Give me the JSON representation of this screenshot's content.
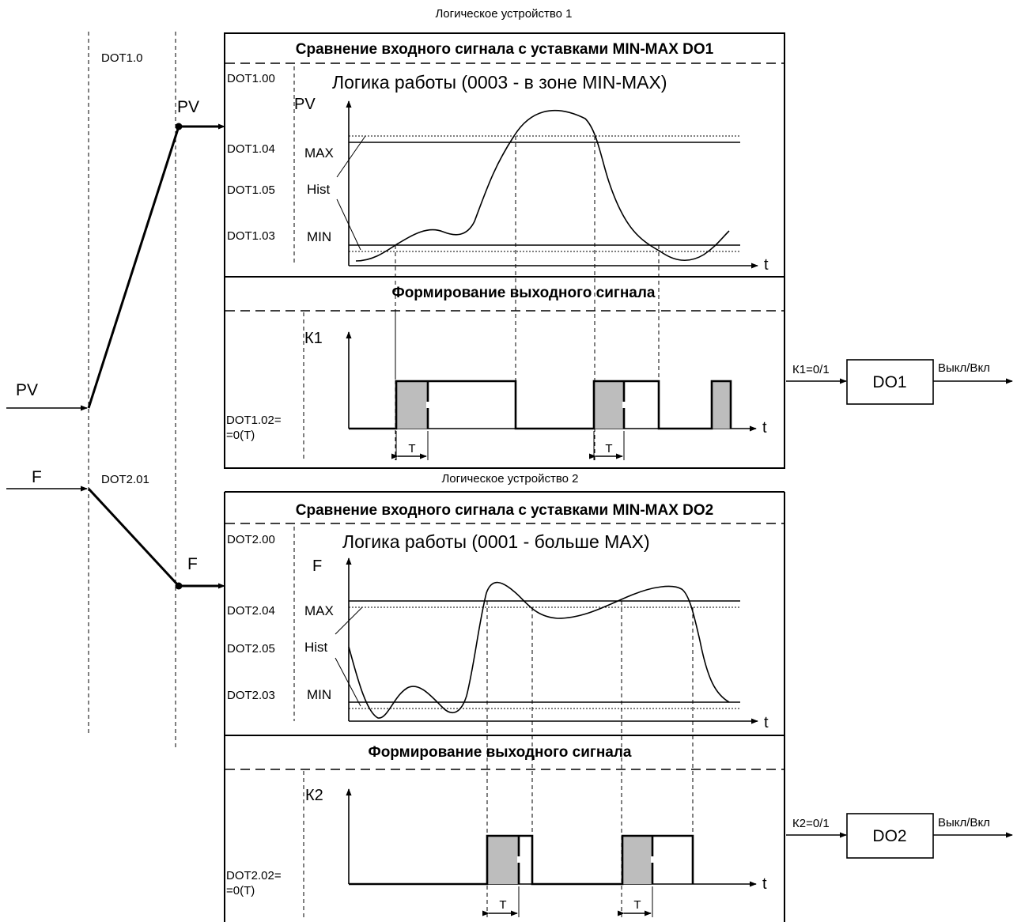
{
  "inputs": {
    "pv": "PV",
    "f": "F"
  },
  "channels": {
    "dot1": "DOT1.0",
    "dot2": "DOT2.01",
    "pv_out": "PV",
    "f_out": "F"
  },
  "device1": {
    "title": "Логическое устройство 1",
    "header": "Сравнение входного сигнала с уставками MIN-MAX  DO1",
    "logic_param": "DOT1.00",
    "logic_text": "Логика работы (0003 - в зоне MIN-MAX)",
    "axis_y": "PV",
    "axis_t": "t",
    "params": {
      "max": "DOT1.04",
      "hist": "DOT1.05",
      "min": "DOT1.03"
    },
    "labels": {
      "max": "MAX",
      "hist": "Hist",
      "min": "MIN"
    },
    "output_header": "Формирование выходного сигнала",
    "out_axis": "К1",
    "out_param_1": "DOT1.02=",
    "out_param_2": "=0(Т)",
    "t_label": "Т",
    "signal_label": "К1=0/1",
    "do_label": "DO1",
    "onoff": "Выкл/Вкл"
  },
  "device2": {
    "title": "Логическое устройство 2",
    "header": "Сравнение входного сигнала с уставками MIN-MAX  DO2",
    "logic_param": "DOT2.00",
    "logic_text": "Логика работы (0001 - больше MAX)",
    "axis_y": "F",
    "axis_t": "t",
    "params": {
      "max": "DOT2.04",
      "hist": "DOT2.05",
      "min": "DOT2.03"
    },
    "labels": {
      "max": "MAX",
      "hist": "Hist",
      "min": "MIN"
    },
    "output_header": "Формирование выходного сигнала",
    "out_axis": "К2",
    "out_param_1": "DOT2.02=",
    "out_param_2": "=0(Т)",
    "t_label": "Т",
    "signal_label": "К2=0/1",
    "do_label": "DO2",
    "onoff": "Выкл/Вкл"
  }
}
